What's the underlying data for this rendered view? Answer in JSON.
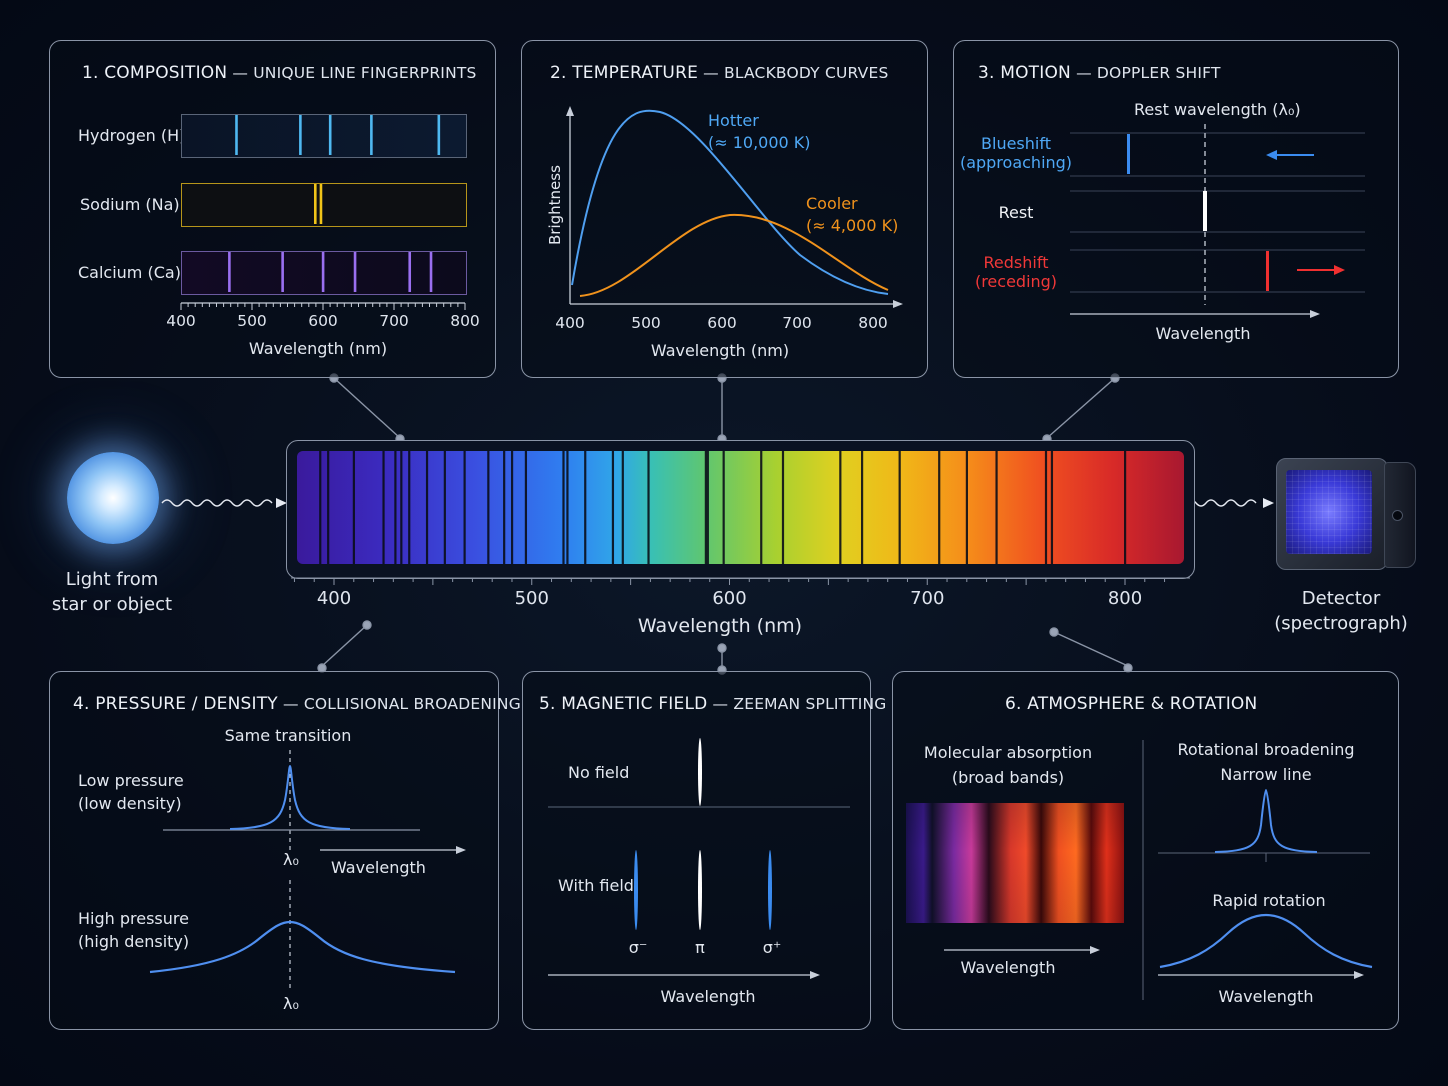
{
  "colors": {
    "hydrogen": "#4fb8f0",
    "sodium": "#f0c419",
    "calcium": "#9a6ff0",
    "hot": "#4f9ff0",
    "cool": "#f0921c",
    "blue": "#3b8cf0",
    "red": "#f03030"
  },
  "panel1": {
    "title_main": "1. COMPOSITION",
    "title_sub": " — UNIQUE LINE FINGERPRINTS",
    "elements": [
      {
        "name": "Hydrogen (H)",
        "color": "#4fb8f0",
        "lines": [
          478,
          568,
          610,
          668,
          763
        ]
      },
      {
        "name": "Sodium (Na)",
        "color": "#f0c419",
        "lines": [
          589,
          597
        ]
      },
      {
        "name": "Calcium (Ca)",
        "color": "#9a6ff0",
        "lines": [
          468,
          543,
          600,
          645,
          722,
          752
        ]
      }
    ],
    "ticks": [
      "400",
      "500",
      "600",
      "700",
      "800"
    ],
    "xlabel": "Wavelength (nm)"
  },
  "panel2": {
    "title_main": "2. TEMPERATURE",
    "title_sub": " — BLACKBODY CURVES",
    "ylabel": "Brightness",
    "hot_label": "Hotter",
    "hot_temp": "(≈ 10,000 K)",
    "cool_label": "Cooler",
    "cool_temp": "(≈ 4,000 K)",
    "ticks": [
      "400",
      "500",
      "600",
      "700",
      "800"
    ],
    "xlabel": "Wavelength (nm)"
  },
  "panel3": {
    "title_main": "3. MOTION",
    "title_sub": " — DOPPLER SHIFT",
    "rest_label": "Rest wavelength (λ₀)",
    "rows": [
      {
        "l1": "Blueshift",
        "l2": "(approaching)",
        "color": "#3b8cf0"
      },
      {
        "l1": "Rest",
        "l2": "",
        "color": "#ffffff"
      },
      {
        "l1": "Redshift",
        "l2": "(receding)",
        "color": "#f03030"
      }
    ],
    "xlabel": "Wavelength"
  },
  "source": {
    "line1": "Light from",
    "line2": "star or object"
  },
  "detector": {
    "line1": "Detector",
    "line2": "(spectrograph)"
  },
  "spectrum": {
    "ticks": [
      "400",
      "500",
      "600",
      "700",
      "800"
    ],
    "xlabel": "Wavelength (nm)",
    "lines": [
      393,
      397,
      410,
      425,
      431,
      434,
      438,
      447,
      456,
      466,
      478,
      486,
      490,
      497,
      516,
      518,
      527,
      541,
      546,
      559,
      588,
      589,
      597,
      616,
      627,
      656,
      667,
      686,
      706,
      720,
      735,
      760,
      763,
      800
    ]
  },
  "panel4": {
    "title_main": "4. PRESSURE / DENSITY",
    "title_sub": " — COLLISIONAL BROADENING",
    "same": "Same transition",
    "low1": "Low pressure",
    "low2": "(low density)",
    "high1": "High pressure",
    "high2": "(high density)",
    "lambda": "λ₀",
    "xlabel": "Wavelength"
  },
  "panel5": {
    "title_main": "5. MAGNETIC FIELD",
    "title_sub": " — ZEEMAN SPLITTING",
    "nofield": "No field",
    "withfield": "With field",
    "sminus": "σ⁻",
    "pi": "π",
    "splus": "σ⁺",
    "xlabel": "Wavelength"
  },
  "panel6": {
    "title": "6. ATMOSPHERE & ROTATION",
    "mol1": "Molecular absorption",
    "mol2": "(broad bands)",
    "rot": "Rotational broadening",
    "narrow": "Narrow line",
    "rapid": "Rapid rotation",
    "xlabel_l": "Wavelength",
    "xlabel_r": "Wavelength"
  }
}
